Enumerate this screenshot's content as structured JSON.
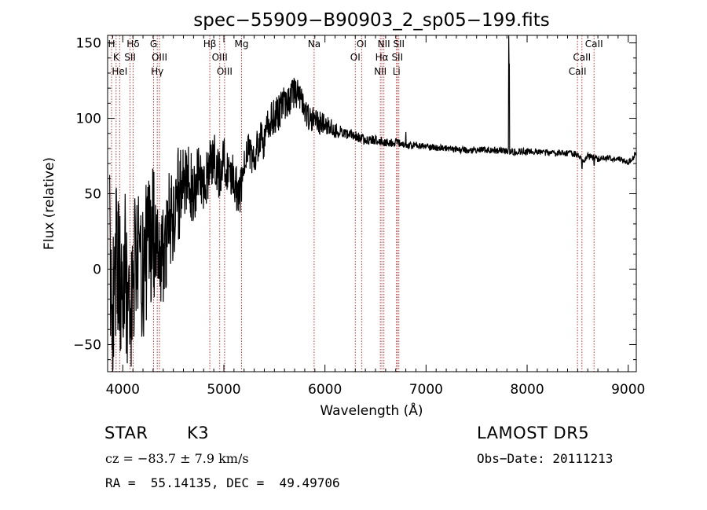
{
  "chart_data": {
    "type": "line",
    "title": "spec−55909−B90903_2_sp05−199.fits",
    "xlabel": "Wavelength (Å)",
    "ylabel": "Flux (relative)",
    "xlim": [
      3850,
      9080
    ],
    "ylim": [
      -68,
      155
    ],
    "x_ticks": [
      4000,
      5000,
      6000,
      7000,
      8000,
      9000
    ],
    "y_ticks": [
      -50,
      0,
      50,
      100,
      150
    ],
    "grid": false,
    "series": [
      {
        "color": "#000000",
        "anchors": [
          [
            3870,
            10
          ],
          [
            3900,
            -25
          ],
          [
            3940,
            5
          ],
          [
            3980,
            -15
          ],
          [
            4020,
            5
          ],
          [
            4060,
            -45
          ],
          [
            4100,
            -5
          ],
          [
            4150,
            10
          ],
          [
            4200,
            0
          ],
          [
            4250,
            18
          ],
          [
            4300,
            25
          ],
          [
            4350,
            0
          ],
          [
            4400,
            15
          ],
          [
            4450,
            30
          ],
          [
            4500,
            38
          ],
          [
            4550,
            50
          ],
          [
            4600,
            52
          ],
          [
            4650,
            62
          ],
          [
            4700,
            50
          ],
          [
            4750,
            68
          ],
          [
            4800,
            58
          ],
          [
            4850,
            65
          ],
          [
            4900,
            78
          ],
          [
            4950,
            62
          ],
          [
            5000,
            72
          ],
          [
            5050,
            64
          ],
          [
            5100,
            62
          ],
          [
            5150,
            45
          ],
          [
            5200,
            70
          ],
          [
            5250,
            80
          ],
          [
            5300,
            72
          ],
          [
            5350,
            88
          ],
          [
            5400,
            84
          ],
          [
            5450,
            98
          ],
          [
            5500,
            102
          ],
          [
            5550,
            104
          ],
          [
            5600,
            110
          ],
          [
            5650,
            112
          ],
          [
            5700,
            118
          ],
          [
            5750,
            116
          ],
          [
            5800,
            106
          ],
          [
            5850,
            100
          ],
          [
            5900,
            99
          ],
          [
            5950,
            97
          ],
          [
            6000,
            96
          ],
          [
            6100,
            92
          ],
          [
            6200,
            90
          ],
          [
            6300,
            88
          ],
          [
            6400,
            86
          ],
          [
            6500,
            86
          ],
          [
            6600,
            84
          ],
          [
            6700,
            84
          ],
          [
            6800,
            82
          ],
          [
            6900,
            82
          ],
          [
            7000,
            81
          ],
          [
            7200,
            80
          ],
          [
            7400,
            79
          ],
          [
            7600,
            79
          ],
          [
            7800,
            78
          ],
          [
            8000,
            78
          ],
          [
            8200,
            77
          ],
          [
            8400,
            77
          ],
          [
            8500,
            76
          ],
          [
            8550,
            72
          ],
          [
            8600,
            75
          ],
          [
            8700,
            73
          ],
          [
            8800,
            74
          ],
          [
            8900,
            73
          ],
          [
            9000,
            71
          ],
          [
            9050,
            74
          ],
          [
            9080,
            77
          ]
        ],
        "noise": [
          [
            3850,
            32
          ],
          [
            4100,
            30
          ],
          [
            4300,
            26
          ],
          [
            4500,
            20
          ],
          [
            4700,
            13
          ],
          [
            4900,
            10
          ],
          [
            5200,
            8
          ],
          [
            5600,
            7
          ],
          [
            5900,
            5
          ],
          [
            6200,
            2.2
          ],
          [
            7000,
            1.4
          ],
          [
            9080,
            1.2
          ]
        ],
        "spikes": [
          [
            5220,
            -8
          ],
          [
            6800,
            8
          ],
          [
            7818,
            75
          ],
          [
            7822,
            60
          ],
          [
            8542,
            -4
          ],
          [
            8662,
            -4
          ]
        ]
      }
    ],
    "line_markers": {
      "color": "#cc2a2a",
      "lines": [
        {
          "labels": [
            "H",
            "K",
            "HeI"
          ],
          "wavelengths": [
            3889,
            3934,
            3969
          ]
        },
        {
          "labels": [
            "Hδ",
            "SII"
          ],
          "wavelengths": [
            4102,
            4072
          ]
        },
        {
          "labels": [
            "G",
            "OIII",
            "Hγ"
          ],
          "wavelengths": [
            4305,
            4363,
            4341
          ]
        },
        {
          "labels": [
            "Hβ",
            "OIII",
            "OIII"
          ],
          "wavelengths": [
            4861,
            4959,
            5007
          ]
        },
        {
          "labels": [
            "Mg"
          ],
          "wavelengths": [
            5175
          ]
        },
        {
          "labels": [
            "Na"
          ],
          "wavelengths": [
            5893
          ]
        },
        {
          "labels": [
            "OI",
            "OI"
          ],
          "wavelengths": [
            6363,
            6300
          ]
        },
        {
          "labels": [
            "NII",
            "Hα",
            "NII"
          ],
          "wavelengths": [
            6583,
            6563,
            6548
          ]
        },
        {
          "labels": [
            "SII",
            "SII",
            "Li"
          ],
          "wavelengths": [
            6731,
            6716,
            6708
          ]
        },
        {
          "labels": [
            "CaII",
            "CaII",
            "CaII"
          ],
          "wavelengths": [
            8662,
            8542,
            8498
          ]
        }
      ]
    }
  },
  "info": {
    "class": "STAR",
    "subclass": "K3",
    "survey": "LAMOST DR5",
    "redshift_line": "cz = −83.7 ± 7.9 km/s",
    "obs_date": "Obs−Date: 20111213",
    "coords": "RA =  55.14135, DEC =  49.49706"
  }
}
